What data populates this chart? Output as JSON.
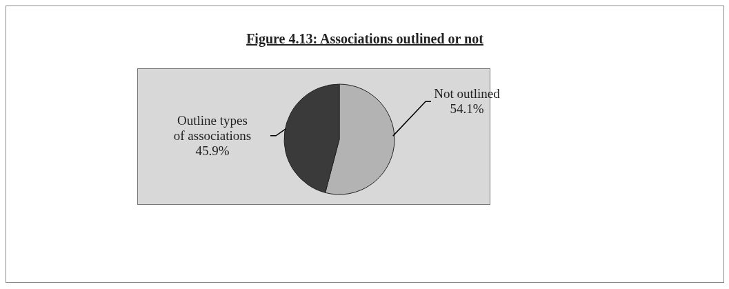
{
  "chart_data": {
    "type": "pie",
    "title": "Figure 4.13: Associations outlined or not",
    "categories": [
      "Not outlined",
      "Outline types of associations"
    ],
    "values": [
      54.1,
      45.9
    ],
    "value_labels": [
      "54.1%",
      "45.9%"
    ],
    "colors": [
      "#b3b3b3",
      "#3a3a3a"
    ],
    "legend": false
  }
}
